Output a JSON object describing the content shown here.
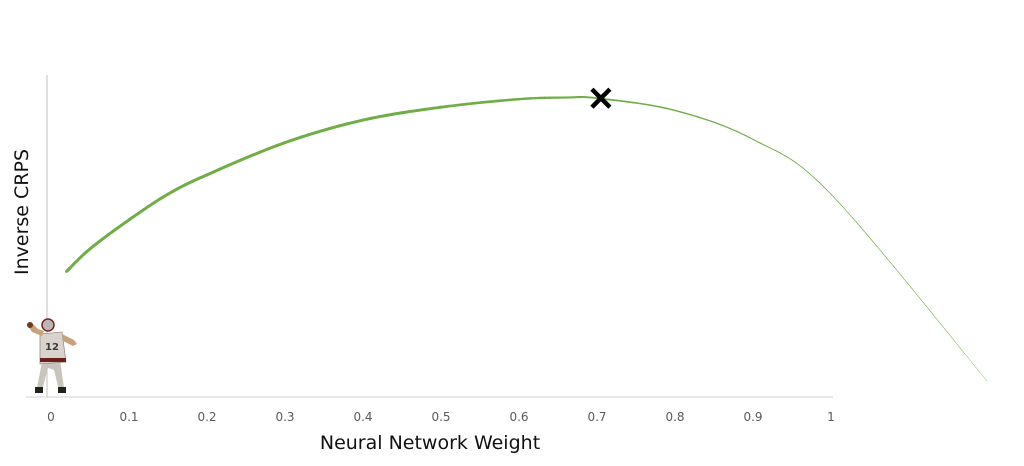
{
  "chart_data": {
    "type": "line",
    "title": "",
    "xlabel": "Neural Network Weight",
    "ylabel": "Inverse CRPS",
    "xlim": [
      0,
      1
    ],
    "x_ticks": [
      "0",
      "0.1",
      "0.2",
      "0.3",
      "0.4",
      "0.5",
      "0.6",
      "0.7",
      "0.8",
      "0.9",
      "1"
    ],
    "grid": false,
    "y_tick_labels": false,
    "series": [
      {
        "color": "#70ad47",
        "style": "curve tapering in thickness toward the right",
        "x": [
          0.02,
          0.05,
          0.1,
          0.15,
          0.2,
          0.3,
          0.4,
          0.5,
          0.6,
          0.66,
          0.7,
          0.8,
          0.9,
          1.0,
          1.2
        ],
        "y": [
          0.39,
          0.46,
          0.55,
          0.63,
          0.69,
          0.79,
          0.86,
          0.9,
          0.925,
          0.93,
          0.928,
          0.89,
          0.8,
          0.63,
          0.05
        ]
      }
    ],
    "annotations": [
      {
        "type": "marker",
        "symbol": "x-mark",
        "x": 0.705,
        "y": 0.928,
        "color": "#000000"
      },
      {
        "type": "image",
        "icon": "football-quarterback-throwing",
        "x": 0.0
      }
    ]
  }
}
